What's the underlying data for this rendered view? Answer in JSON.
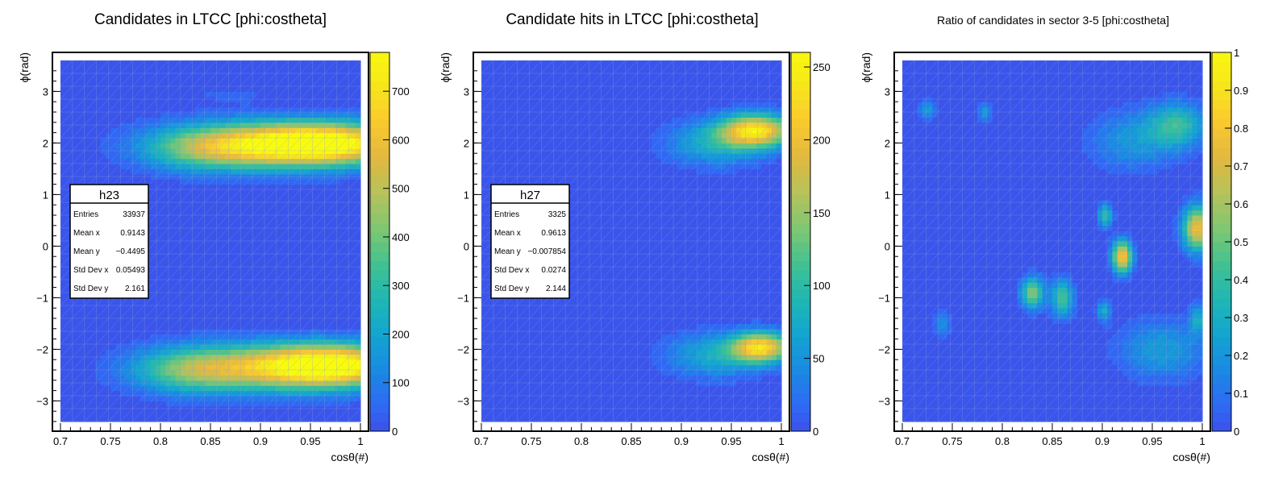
{
  "colors": {
    "background": "#3b4fb0",
    "grid": "#8f9fd8",
    "palette": [
      "#3e26a8",
      "#4245e3",
      "#2f69f5",
      "#1a89e3",
      "#13a4d0",
      "#20b7b3",
      "#43c290",
      "#82c770",
      "#b8c25a",
      "#e4b83e",
      "#fbcb2d",
      "#f7e71b",
      "#f9fb0e"
    ]
  },
  "chart_data": [
    {
      "type": "heatmap",
      "title": "Candidates in LTCC [phi:costheta]",
      "xlabel": "cosθ(#)",
      "ylabel": "ϕ(rad)",
      "xlim": [
        0.7,
        1.0
      ],
      "ylim": [
        -3.4,
        3.6
      ],
      "xticks": [
        "0.7",
        "0.75",
        "0.8",
        "0.85",
        "0.9",
        "0.95",
        "1"
      ],
      "yticks": [
        "−3",
        "−2",
        "−1",
        "0",
        "1",
        "2",
        "3"
      ],
      "zlim": [
        0,
        780
      ],
      "zticks": [
        "0",
        "100",
        "200",
        "300",
        "400",
        "500",
        "600",
        "700"
      ],
      "blobs": [
        {
          "cx": 0.965,
          "cy": 2.0,
          "sx": 0.06,
          "sy": 0.28,
          "amp": 700
        },
        {
          "cx": 0.9,
          "cy": 1.95,
          "sx": 0.07,
          "sy": 0.32,
          "amp": 420
        },
        {
          "cx": 0.84,
          "cy": 1.9,
          "sx": 0.04,
          "sy": 0.3,
          "amp": 220
        },
        {
          "cx": 0.87,
          "cy": 2.95,
          "sx": 0.03,
          "sy": 0.12,
          "amp": 50
        },
        {
          "cx": 0.975,
          "cy": -2.3,
          "sx": 0.05,
          "sy": 0.28,
          "amp": 720
        },
        {
          "cx": 0.9,
          "cy": -2.35,
          "sx": 0.07,
          "sy": 0.33,
          "amp": 430
        },
        {
          "cx": 0.83,
          "cy": -2.4,
          "sx": 0.04,
          "sy": 0.3,
          "amp": 260
        }
      ],
      "stats": {
        "name": "h23",
        "rows": [
          {
            "label": "Entries",
            "value": "33937"
          },
          {
            "label": "Mean x",
            "value": "0.9143"
          },
          {
            "label": "Mean y",
            "value": "−0.4495"
          },
          {
            "label": "Std Dev x",
            "value": "0.05493"
          },
          {
            "label": "Std Dev y",
            "value": "2.161"
          }
        ]
      }
    },
    {
      "type": "heatmap",
      "title": "Candidate hits in LTCC [phi:costheta]",
      "xlabel": "cosθ(#)",
      "ylabel": "ϕ(rad)",
      "xlim": [
        0.7,
        1.0
      ],
      "ylim": [
        -3.4,
        3.6
      ],
      "xticks": [
        "0.7",
        "0.75",
        "0.8",
        "0.85",
        "0.9",
        "0.95",
        "1"
      ],
      "yticks": [
        "−3",
        "−2",
        "−1",
        "0",
        "1",
        "2",
        "3"
      ],
      "zlim": [
        0,
        260
      ],
      "zticks": [
        "0",
        "50",
        "100",
        "150",
        "200",
        "250"
      ],
      "blobs": [
        {
          "cx": 0.975,
          "cy": 2.25,
          "sx": 0.025,
          "sy": 0.22,
          "amp": 230
        },
        {
          "cx": 0.935,
          "cy": 2.0,
          "sx": 0.035,
          "sy": 0.3,
          "amp": 80
        },
        {
          "cx": 0.98,
          "cy": -1.95,
          "sx": 0.02,
          "sy": 0.2,
          "amp": 220
        },
        {
          "cx": 0.935,
          "cy": -2.1,
          "sx": 0.035,
          "sy": 0.3,
          "amp": 80
        }
      ],
      "stats": {
        "name": "h27",
        "rows": [
          {
            "label": "Entries",
            "value": "3325"
          },
          {
            "label": "Mean x",
            "value": "0.9613"
          },
          {
            "label": "Mean y",
            "value": "−0.007854"
          },
          {
            "label": "Std Dev x",
            "value": "0.0274"
          },
          {
            "label": "Std Dev y",
            "value": "2.144"
          }
        ]
      }
    },
    {
      "type": "heatmap",
      "title": "Ratio of candidates in sector 3-5 [phi:costheta]",
      "xlabel": "cosθ(#)",
      "ylabel": "ϕ(rad)",
      "xlim": [
        0.7,
        1.0
      ],
      "ylim": [
        -3.4,
        3.6
      ],
      "xticks": [
        "0.7",
        "0.75",
        "0.8",
        "0.85",
        "0.9",
        "0.95",
        "1"
      ],
      "yticks": [
        "−3",
        "−2",
        "−1",
        "0",
        "1",
        "2",
        "3"
      ],
      "zlim": [
        0,
        1
      ],
      "zticks": [
        "0",
        "0.1",
        "0.2",
        "0.3",
        "0.4",
        "0.5",
        "0.6",
        "0.7",
        "0.8",
        "0.9",
        "1"
      ],
      "blobs": [
        {
          "cx": 0.725,
          "cy": 2.65,
          "sx": 0.006,
          "sy": 0.15,
          "amp": 0.25
        },
        {
          "cx": 0.782,
          "cy": 2.6,
          "sx": 0.005,
          "sy": 0.12,
          "amp": 0.22
        },
        {
          "cx": 0.74,
          "cy": -1.5,
          "sx": 0.006,
          "sy": 0.18,
          "amp": 0.22
        },
        {
          "cx": 0.83,
          "cy": -0.9,
          "sx": 0.008,
          "sy": 0.22,
          "amp": 0.55
        },
        {
          "cx": 0.86,
          "cy": -1.0,
          "sx": 0.008,
          "sy": 0.25,
          "amp": 0.45
        },
        {
          "cx": 0.903,
          "cy": 0.6,
          "sx": 0.005,
          "sy": 0.15,
          "amp": 0.42
        },
        {
          "cx": 0.92,
          "cy": -0.2,
          "sx": 0.007,
          "sy": 0.22,
          "amp": 0.85
        },
        {
          "cx": 0.902,
          "cy": -1.25,
          "sx": 0.005,
          "sy": 0.15,
          "amp": 0.3
        },
        {
          "cx": 0.995,
          "cy": 0.35,
          "sx": 0.01,
          "sy": 0.3,
          "amp": 0.8
        },
        {
          "cx": 0.975,
          "cy": 2.35,
          "sx": 0.02,
          "sy": 0.3,
          "amp": 0.4
        },
        {
          "cx": 0.93,
          "cy": 2.05,
          "sx": 0.03,
          "sy": 0.4,
          "amp": 0.22
        },
        {
          "cx": 0.96,
          "cy": -2.0,
          "sx": 0.03,
          "sy": 0.4,
          "amp": 0.25
        },
        {
          "cx": 0.995,
          "cy": -1.4,
          "sx": 0.005,
          "sy": 0.2,
          "amp": 0.3
        }
      ],
      "stats": null
    }
  ]
}
